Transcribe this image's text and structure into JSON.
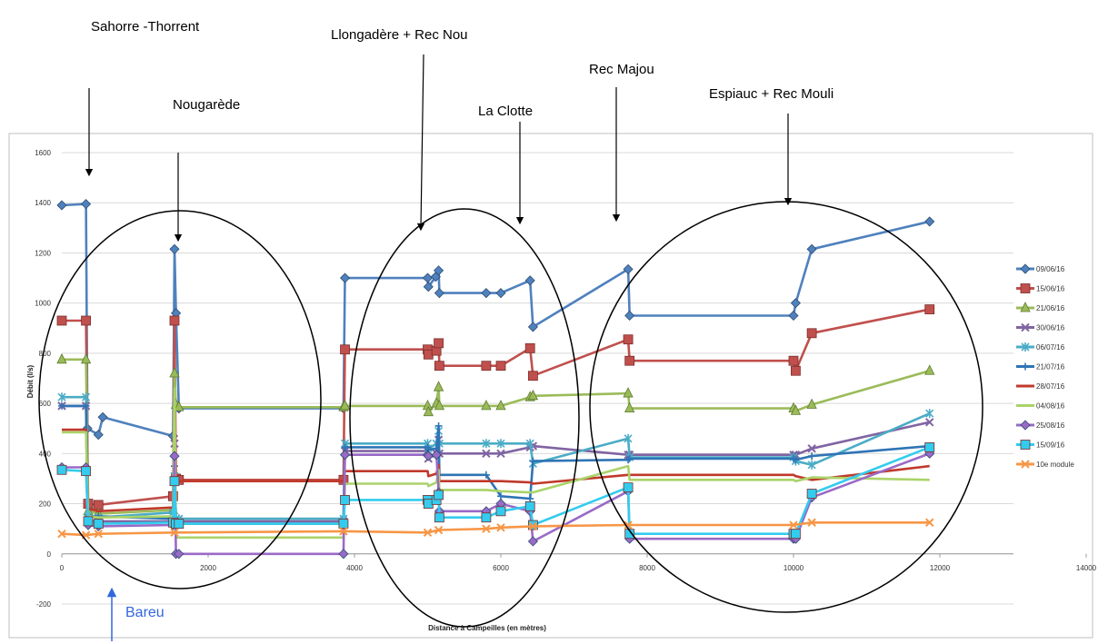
{
  "annotations": [
    {
      "id": "sahorre",
      "text": "Sahorre -Thorrent"
    },
    {
      "id": "llongadere",
      "text": "Llongadère + Rec Nou"
    },
    {
      "id": "recmajou",
      "text": "Rec Majou"
    },
    {
      "id": "nougarede",
      "text": "Nougarède"
    },
    {
      "id": "laclotte",
      "text": "La Clotte"
    },
    {
      "id": "espiauc",
      "text": "Espiauc + Rec Mouli"
    },
    {
      "id": "bareu",
      "text": "Bareu"
    }
  ],
  "chart_data": {
    "type": "line",
    "title": "",
    "xlabel": "Distance à Campeilles (en mètres)",
    "ylabel": "Débit (l/s)",
    "xlim": [
      0,
      14000
    ],
    "ylim": [
      -200,
      1600
    ],
    "xticks": [
      "0",
      "2000",
      "4000",
      "6000",
      "8000",
      "10000",
      "12000",
      "14000"
    ],
    "yticks": [
      "-200",
      "0",
      "200",
      "400",
      "600",
      "800",
      "1000",
      "1200",
      "1400",
      "1600"
    ],
    "grid": true,
    "legend_position": "right",
    "series": [
      {
        "name": "09/06/16",
        "color": "#4f81bd",
        "marker": "diamond",
        "points": [
          [
            0,
            1390
          ],
          [
            330,
            1395
          ],
          [
            350,
            500
          ],
          [
            500,
            475
          ],
          [
            560,
            545
          ],
          [
            1520,
            470
          ],
          [
            1540,
            1215
          ],
          [
            1560,
            960
          ],
          [
            1600,
            580
          ],
          [
            3850,
            580
          ],
          [
            3870,
            1100
          ],
          [
            5000,
            1100
          ],
          [
            5010,
            1065
          ],
          [
            5110,
            1105
          ],
          [
            5150,
            1130
          ],
          [
            5160,
            1040
          ],
          [
            5800,
            1040
          ],
          [
            6000,
            1040
          ],
          [
            6400,
            1090
          ],
          [
            6440,
            905
          ],
          [
            7740,
            1135
          ],
          [
            7760,
            950
          ],
          [
            10000,
            950
          ],
          [
            10030,
            1000
          ],
          [
            10250,
            1215
          ],
          [
            11860,
            1325
          ]
        ]
      },
      {
        "name": "15/06/16",
        "color": "#c0504d",
        "marker": "square",
        "points": [
          [
            0,
            930
          ],
          [
            330,
            930
          ],
          [
            360,
            200
          ],
          [
            500,
            195
          ],
          [
            1520,
            230
          ],
          [
            1540,
            930
          ],
          [
            1560,
            300
          ],
          [
            1600,
            295
          ],
          [
            3850,
            295
          ],
          [
            3870,
            815
          ],
          [
            5000,
            815
          ],
          [
            5010,
            795
          ],
          [
            5120,
            810
          ],
          [
            5150,
            840
          ],
          [
            5160,
            750
          ],
          [
            5800,
            750
          ],
          [
            6000,
            750
          ],
          [
            6400,
            820
          ],
          [
            6440,
            710
          ],
          [
            7740,
            855
          ],
          [
            7760,
            770
          ],
          [
            10000,
            770
          ],
          [
            10030,
            730
          ],
          [
            10250,
            880
          ],
          [
            11860,
            975
          ]
        ]
      },
      {
        "name": "21/06/16",
        "color": "#9bbb59",
        "marker": "triangle",
        "points": [
          [
            0,
            775
          ],
          [
            330,
            775
          ],
          [
            360,
            170
          ],
          [
            500,
            160
          ],
          [
            1520,
            175
          ],
          [
            1540,
            720
          ],
          [
            1560,
            595
          ],
          [
            1600,
            585
          ],
          [
            3850,
            585
          ],
          [
            3870,
            590
          ],
          [
            5000,
            590
          ],
          [
            5010,
            565
          ],
          [
            5120,
            600
          ],
          [
            5150,
            665
          ],
          [
            5160,
            590
          ],
          [
            5800,
            590
          ],
          [
            6000,
            590
          ],
          [
            6400,
            625
          ],
          [
            6440,
            630
          ],
          [
            7740,
            640
          ],
          [
            7760,
            580
          ],
          [
            10000,
            580
          ],
          [
            10030,
            570
          ],
          [
            10250,
            595
          ],
          [
            11860,
            730
          ]
        ]
      },
      {
        "name": "30/06/16",
        "color": "#8064a2",
        "marker": "x",
        "points": [
          [
            0,
            590
          ],
          [
            330,
            590
          ],
          [
            360,
            130
          ],
          [
            500,
            130
          ],
          [
            1520,
            130
          ],
          [
            1540,
            440
          ],
          [
            1560,
            130
          ],
          [
            1600,
            130
          ],
          [
            3850,
            130
          ],
          [
            3870,
            410
          ],
          [
            5000,
            410
          ],
          [
            5010,
            380
          ],
          [
            5120,
            400
          ],
          [
            5150,
            455
          ],
          [
            5160,
            400
          ],
          [
            5800,
            400
          ],
          [
            6000,
            400
          ],
          [
            6400,
            425
          ],
          [
            6440,
            430
          ],
          [
            7740,
            395
          ],
          [
            7760,
            395
          ],
          [
            10000,
            395
          ],
          [
            10030,
            395
          ],
          [
            10250,
            420
          ],
          [
            11860,
            525
          ]
        ]
      },
      {
        "name": "06/07/16",
        "color": "#4bacc6",
        "marker": "star",
        "points": [
          [
            0,
            625
          ],
          [
            330,
            625
          ],
          [
            360,
            150
          ],
          [
            500,
            145
          ],
          [
            1520,
            165
          ],
          [
            1540,
            310
          ],
          [
            1560,
            140
          ],
          [
            1600,
            140
          ],
          [
            3850,
            140
          ],
          [
            3870,
            440
          ],
          [
            5000,
            440
          ],
          [
            5010,
            420
          ],
          [
            5120,
            440
          ],
          [
            5150,
            490
          ],
          [
            5160,
            440
          ],
          [
            5800,
            440
          ],
          [
            6000,
            440
          ],
          [
            6400,
            440
          ],
          [
            6440,
            360
          ],
          [
            7740,
            460
          ],
          [
            7760,
            385
          ],
          [
            10000,
            385
          ],
          [
            10030,
            370
          ],
          [
            10250,
            355
          ],
          [
            11860,
            560
          ]
        ]
      },
      {
        "name": "21/07/16",
        "color": "#2f74b5",
        "marker": "plus",
        "points": [
          [
            0,
            590
          ],
          [
            330,
            590
          ],
          [
            360,
            150
          ],
          [
            500,
            150
          ],
          [
            1520,
            140
          ],
          [
            1540,
            350
          ],
          [
            1560,
            120
          ],
          [
            1600,
            120
          ],
          [
            3850,
            120
          ],
          [
            3870,
            425
          ],
          [
            5000,
            425
          ],
          [
            5010,
            415
          ],
          [
            5120,
            420
          ],
          [
            5150,
            510
          ],
          [
            5160,
            315
          ],
          [
            5800,
            315
          ],
          [
            6000,
            230
          ],
          [
            6400,
            220
          ],
          [
            6440,
            370
          ],
          [
            7740,
            375
          ],
          [
            7760,
            380
          ],
          [
            10000,
            380
          ],
          [
            10030,
            375
          ],
          [
            10250,
            390
          ],
          [
            11860,
            430
          ]
        ]
      },
      {
        "name": "28/07/16",
        "color": "#c0392b",
        "marker": "line",
        "points": [
          [
            0,
            495
          ],
          [
            330,
            495
          ],
          [
            360,
            180
          ],
          [
            500,
            170
          ],
          [
            1520,
            185
          ],
          [
            1540,
            520
          ],
          [
            1560,
            290
          ],
          [
            1600,
            290
          ],
          [
            3850,
            290
          ],
          [
            3870,
            330
          ],
          [
            5000,
            330
          ],
          [
            5010,
            310
          ],
          [
            5120,
            320
          ],
          [
            5150,
            355
          ],
          [
            5160,
            290
          ],
          [
            5800,
            290
          ],
          [
            6000,
            290
          ],
          [
            6400,
            285
          ],
          [
            6440,
            280
          ],
          [
            7740,
            315
          ],
          [
            7760,
            315
          ],
          [
            10000,
            315
          ],
          [
            10030,
            310
          ],
          [
            10250,
            295
          ],
          [
            11860,
            350
          ]
        ]
      },
      {
        "name": "04/08/16",
        "color": "#aad36a",
        "marker": "line",
        "points": [
          [
            0,
            485
          ],
          [
            330,
            485
          ],
          [
            360,
            150
          ],
          [
            500,
            145
          ],
          [
            1520,
            150
          ],
          [
            1540,
            660
          ],
          [
            1560,
            65
          ],
          [
            1600,
            65
          ],
          [
            3850,
            65
          ],
          [
            3870,
            280
          ],
          [
            5000,
            280
          ],
          [
            5010,
            270
          ],
          [
            5120,
            285
          ],
          [
            5150,
            335
          ],
          [
            5160,
            255
          ],
          [
            5800,
            255
          ],
          [
            6000,
            250
          ],
          [
            6400,
            245
          ],
          [
            6440,
            245
          ],
          [
            7740,
            350
          ],
          [
            7760,
            295
          ],
          [
            10000,
            295
          ],
          [
            10030,
            290
          ],
          [
            10250,
            305
          ],
          [
            11860,
            295
          ]
        ]
      },
      {
        "name": "25/08/16",
        "color": "#9a6ac7",
        "marker": "diamond",
        "points": [
          [
            0,
            345
          ],
          [
            330,
            345
          ],
          [
            360,
            115
          ],
          [
            500,
            110
          ],
          [
            1520,
            115
          ],
          [
            1540,
            390
          ],
          [
            1560,
            0
          ],
          [
            1600,
            0
          ],
          [
            3850,
            0
          ],
          [
            3870,
            395
          ],
          [
            5000,
            395
          ],
          [
            5010,
            390
          ],
          [
            5120,
            395
          ],
          [
            5150,
            245
          ],
          [
            5160,
            170
          ],
          [
            5800,
            170
          ],
          [
            6000,
            200
          ],
          [
            6400,
            170
          ],
          [
            6440,
            50
          ],
          [
            7740,
            250
          ],
          [
            7760,
            60
          ],
          [
            10000,
            60
          ],
          [
            10030,
            60
          ],
          [
            10250,
            225
          ],
          [
            11860,
            400
          ]
        ]
      },
      {
        "name": "15/09/16",
        "color": "#33ccee",
        "marker": "square",
        "points": [
          [
            0,
            335
          ],
          [
            330,
            330
          ],
          [
            360,
            130
          ],
          [
            500,
            120
          ],
          [
            1520,
            125
          ],
          [
            1540,
            290
          ],
          [
            1560,
            120
          ],
          [
            1600,
            120
          ],
          [
            3850,
            120
          ],
          [
            3870,
            215
          ],
          [
            5000,
            215
          ],
          [
            5010,
            200
          ],
          [
            5120,
            215
          ],
          [
            5150,
            235
          ],
          [
            5160,
            145
          ],
          [
            5800,
            145
          ],
          [
            6000,
            170
          ],
          [
            6400,
            190
          ],
          [
            6440,
            115
          ],
          [
            7740,
            265
          ],
          [
            7760,
            80
          ],
          [
            10000,
            80
          ],
          [
            10030,
            80
          ],
          [
            10250,
            240
          ],
          [
            11860,
            425
          ]
        ]
      },
      {
        "name": "10e module",
        "color": "#f79646",
        "marker": "x",
        "points": [
          [
            0,
            80
          ],
          [
            330,
            75
          ],
          [
            500,
            80
          ],
          [
            1540,
            85
          ],
          [
            3850,
            90
          ],
          [
            5000,
            85
          ],
          [
            5150,
            95
          ],
          [
            5800,
            100
          ],
          [
            6000,
            105
          ],
          [
            6440,
            110
          ],
          [
            7740,
            115
          ],
          [
            10000,
            115
          ],
          [
            10250,
            125
          ],
          [
            11860,
            125
          ]
        ]
      }
    ]
  }
}
